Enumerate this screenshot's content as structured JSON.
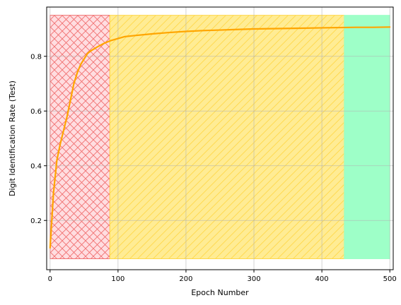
{
  "chart_data": {
    "type": "line",
    "title": "",
    "xlabel": "Epoch Number",
    "ylabel": "Digit Identification Rate (Test)",
    "xlim": [
      -5,
      505
    ],
    "ylim": [
      0.02,
      0.98
    ],
    "xticks": [
      0,
      100,
      200,
      300,
      400,
      500
    ],
    "yticks": [
      0.2,
      0.4,
      0.6,
      0.8
    ],
    "grid": true,
    "regions": [
      {
        "x0": 0,
        "x1": 88,
        "y0": 0.06,
        "y1": 0.95,
        "fill": "#ffdde0",
        "edge": "#f07070",
        "hatch": "crosshatch"
      },
      {
        "x0": 88,
        "x1": 433,
        "y0": 0.06,
        "y1": 0.95,
        "fill": "#ffec94",
        "edge": "#ffd84a",
        "hatch": "diagonal"
      },
      {
        "x0": 433,
        "x1": 500,
        "y0": 0.06,
        "y1": 0.95,
        "fill": "#9effc8",
        "edge": "#9effc8",
        "hatch": "none"
      }
    ],
    "series": [
      {
        "color": "#ffa500",
        "x": [
          0,
          5,
          10,
          15,
          20,
          25,
          30,
          35,
          40,
          45,
          50,
          55,
          60,
          70,
          80,
          90,
          100,
          110,
          125,
          150,
          175,
          200,
          225,
          250,
          275,
          300,
          325,
          350,
          375,
          400,
          425,
          450,
          475,
          500
        ],
        "values": [
          0.1,
          0.3,
          0.42,
          0.48,
          0.53,
          0.58,
          0.64,
          0.7,
          0.74,
          0.77,
          0.79,
          0.81,
          0.82,
          0.835,
          0.848,
          0.858,
          0.865,
          0.872,
          0.876,
          0.882,
          0.887,
          0.891,
          0.894,
          0.896,
          0.898,
          0.9,
          0.901,
          0.902,
          0.903,
          0.904,
          0.905,
          0.906,
          0.906,
          0.907
        ]
      }
    ]
  }
}
